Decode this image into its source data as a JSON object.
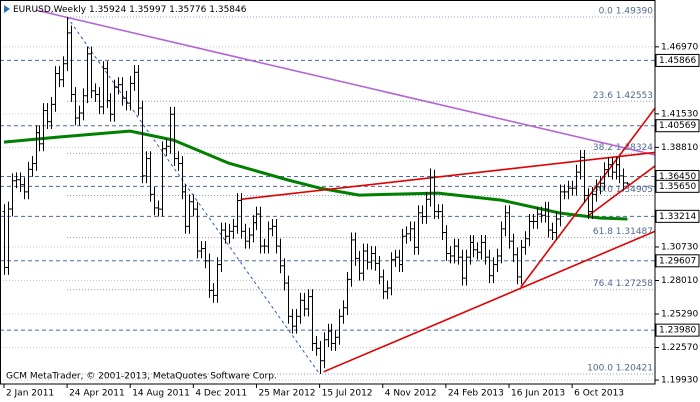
{
  "chart_data": {
    "type": "ohlc",
    "symbol": "EURUSD,Weekly",
    "footer": "GCM MetaTrader, © 2001-2013, MetaQuotes Software Corp.",
    "bar_color": "#000000",
    "open": [
      1.336,
      1.2907,
      1.3381,
      1.361,
      1.3618,
      1.3578,
      1.352,
      1.3703,
      1.375,
      1.4,
      1.391,
      1.418,
      1.409,
      1.423,
      1.448,
      1.443,
      1.456,
      1.481,
      1.431,
      1.412,
      1.416,
      1.43,
      1.464,
      1.434,
      1.431,
      1.421,
      1.452,
      1.426,
      1.415,
      1.437,
      1.439,
      1.428,
      1.424,
      1.44,
      1.449,
      1.42,
      1.365,
      1.379,
      1.35,
      1.339,
      1.338,
      1.387,
      1.389,
      1.415,
      1.379,
      1.375,
      1.352,
      1.324,
      1.344,
      1.338,
      1.304,
      1.306,
      1.296,
      1.272,
      1.268,
      1.293,
      1.321,
      1.316,
      1.32,
      1.324,
      1.345,
      1.32,
      1.312,
      1.317,
      1.327,
      1.334,
      1.308,
      1.308,
      1.322,
      1.324,
      1.308,
      1.292,
      1.278,
      1.251,
      1.243,
      1.251,
      1.264,
      1.257,
      1.267,
      1.229,
      1.225,
      1.215,
      1.232,
      1.239,
      1.229,
      1.234,
      1.251,
      1.258,
      1.281,
      1.313,
      1.298,
      1.286,
      1.304,
      1.295,
      1.302,
      1.294,
      1.283,
      1.271,
      1.274,
      1.297,
      1.299,
      1.293,
      1.316,
      1.318,
      1.322,
      1.307,
      1.335,
      1.332,
      1.346,
      1.364,
      1.336,
      1.336,
      1.319,
      1.302,
      1.3,
      1.308,
      1.299,
      1.282,
      1.299,
      1.311,
      1.305,
      1.303,
      1.311,
      1.299,
      1.284,
      1.293,
      1.3,
      1.322,
      1.335,
      1.312,
      1.301,
      1.283,
      1.307,
      1.314,
      1.328,
      1.328,
      1.334,
      1.333,
      1.338,
      1.321,
      1.319,
      1.33,
      1.352,
      1.352,
      1.355,
      1.355,
      1.368,
      1.38,
      1.349,
      1.336,
      1.35,
      1.356,
      1.359,
      1.37,
      1.374,
      1.368,
      1.374,
      1.365,
      1.35924
    ],
    "high": [
      1.342,
      1.3441,
      1.367,
      1.3678,
      1.3678,
      1.3638,
      1.3763,
      1.381,
      1.406,
      1.406,
      1.424,
      1.424,
      1.429,
      1.454,
      1.454,
      1.462,
      1.4939,
      1.487,
      1.437,
      1.422,
      1.436,
      1.47,
      1.47,
      1.44,
      1.437,
      1.458,
      1.458,
      1.432,
      1.443,
      1.445,
      1.445,
      1.434,
      1.446,
      1.455,
      1.455,
      1.426,
      1.385,
      1.385,
      1.356,
      1.345,
      1.393,
      1.395,
      1.421,
      1.421,
      1.385,
      1.381,
      1.358,
      1.35,
      1.35,
      1.344,
      1.312,
      1.312,
      1.302,
      1.278,
      1.299,
      1.327,
      1.327,
      1.326,
      1.33,
      1.351,
      1.351,
      1.326,
      1.323,
      1.333,
      1.34,
      1.34,
      1.314,
      1.328,
      1.33,
      1.33,
      1.314,
      1.298,
      1.284,
      1.257,
      1.257,
      1.27,
      1.27,
      1.273,
      1.273,
      1.235,
      1.231,
      1.238,
      1.245,
      1.245,
      1.24,
      1.257,
      1.264,
      1.287,
      1.319,
      1.319,
      1.304,
      1.31,
      1.31,
      1.308,
      1.308,
      1.3,
      1.289,
      1.28,
      1.303,
      1.305,
      1.305,
      1.322,
      1.324,
      1.328,
      1.328,
      1.341,
      1.341,
      1.352,
      1.371,
      1.37,
      1.342,
      1.342,
      1.325,
      1.308,
      1.314,
      1.314,
      1.305,
      1.305,
      1.317,
      1.317,
      1.311,
      1.317,
      1.317,
      1.305,
      1.299,
      1.306,
      1.328,
      1.341,
      1.341,
      1.318,
      1.307,
      1.313,
      1.32,
      1.334,
      1.334,
      1.34,
      1.34,
      1.344,
      1.344,
      1.327,
      1.336,
      1.358,
      1.358,
      1.361,
      1.361,
      1.374,
      1.386,
      1.386,
      1.355,
      1.356,
      1.362,
      1.365,
      1.376,
      1.38,
      1.38,
      1.38,
      1.38,
      1.371,
      1.35997
    ],
    "low": [
      1.2847,
      1.2847,
      1.3321,
      1.355,
      1.3518,
      1.346,
      1.346,
      1.3643,
      1.369,
      1.385,
      1.385,
      1.403,
      1.403,
      1.417,
      1.437,
      1.437,
      1.45,
      1.425,
      1.406,
      1.406,
      1.41,
      1.424,
      1.428,
      1.425,
      1.415,
      1.415,
      1.42,
      1.409,
      1.409,
      1.431,
      1.422,
      1.418,
      1.418,
      1.434,
      1.414,
      1.359,
      1.359,
      1.344,
      1.333,
      1.332,
      1.332,
      1.381,
      1.383,
      1.373,
      1.369,
      1.346,
      1.318,
      1.318,
      1.332,
      1.298,
      1.298,
      1.29,
      1.266,
      1.262,
      1.262,
      1.287,
      1.31,
      1.31,
      1.314,
      1.318,
      1.314,
      1.306,
      1.306,
      1.311,
      1.321,
      1.302,
      1.302,
      1.302,
      1.316,
      1.302,
      1.286,
      1.272,
      1.245,
      1.237,
      1.237,
      1.245,
      1.251,
      1.251,
      1.223,
      1.219,
      1.2042,
      1.209,
      1.226,
      1.223,
      1.223,
      1.228,
      1.245,
      1.252,
      1.275,
      1.292,
      1.28,
      1.28,
      1.289,
      1.289,
      1.288,
      1.277,
      1.265,
      1.265,
      1.268,
      1.291,
      1.287,
      1.287,
      1.31,
      1.312,
      1.301,
      1.301,
      1.326,
      1.326,
      1.34,
      1.33,
      1.33,
      1.313,
      1.296,
      1.294,
      1.294,
      1.293,
      1.276,
      1.276,
      1.293,
      1.299,
      1.297,
      1.297,
      1.293,
      1.278,
      1.278,
      1.287,
      1.294,
      1.316,
      1.306,
      1.295,
      1.277,
      1.277,
      1.301,
      1.308,
      1.322,
      1.322,
      1.327,
      1.327,
      1.315,
      1.313,
      1.313,
      1.324,
      1.346,
      1.346,
      1.349,
      1.349,
      1.362,
      1.343,
      1.33,
      1.33,
      1.344,
      1.35,
      1.353,
      1.364,
      1.362,
      1.362,
      1.359,
      1.353,
      1.35776
    ],
    "close": [
      1.2907,
      1.3381,
      1.361,
      1.3618,
      1.3578,
      1.352,
      1.3703,
      1.375,
      1.4,
      1.391,
      1.418,
      1.409,
      1.423,
      1.448,
      1.443,
      1.456,
      1.481,
      1.431,
      1.412,
      1.416,
      1.43,
      1.464,
      1.434,
      1.431,
      1.421,
      1.452,
      1.426,
      1.415,
      1.437,
      1.439,
      1.428,
      1.424,
      1.44,
      1.449,
      1.42,
      1.365,
      1.379,
      1.35,
      1.339,
      1.338,
      1.387,
      1.389,
      1.415,
      1.379,
      1.375,
      1.352,
      1.324,
      1.344,
      1.338,
      1.304,
      1.306,
      1.296,
      1.272,
      1.268,
      1.293,
      1.321,
      1.316,
      1.32,
      1.324,
      1.345,
      1.32,
      1.312,
      1.317,
      1.327,
      1.334,
      1.308,
      1.308,
      1.322,
      1.324,
      1.308,
      1.292,
      1.278,
      1.251,
      1.243,
      1.251,
      1.264,
      1.257,
      1.267,
      1.229,
      1.225,
      1.215,
      1.232,
      1.239,
      1.229,
      1.234,
      1.251,
      1.258,
      1.281,
      1.313,
      1.298,
      1.286,
      1.304,
      1.295,
      1.302,
      1.294,
      1.283,
      1.271,
      1.274,
      1.297,
      1.299,
      1.293,
      1.316,
      1.318,
      1.322,
      1.307,
      1.335,
      1.332,
      1.346,
      1.364,
      1.336,
      1.336,
      1.319,
      1.302,
      1.3,
      1.308,
      1.299,
      1.282,
      1.299,
      1.311,
      1.305,
      1.303,
      1.311,
      1.299,
      1.284,
      1.293,
      1.3,
      1.322,
      1.335,
      1.312,
      1.301,
      1.283,
      1.307,
      1.314,
      1.328,
      1.328,
      1.334,
      1.333,
      1.338,
      1.321,
      1.319,
      1.33,
      1.352,
      1.352,
      1.355,
      1.355,
      1.368,
      1.38,
      1.349,
      1.336,
      1.35,
      1.356,
      1.359,
      1.37,
      1.374,
      1.368,
      1.374,
      1.365,
      1.35924,
      1.35846
    ],
    "xlim": [
      -1,
      165
    ],
    "ylim": [
      1.1961,
      1.5077
    ],
    "xticks": [
      {
        "value": 0,
        "label": "2 Jan 2011"
      },
      {
        "value": 16,
        "label": "24 Apr 2011"
      },
      {
        "value": 32,
        "label": "14 Aug 2011"
      },
      {
        "value": 48,
        "label": "4 Dec 2011"
      },
      {
        "value": 64,
        "label": "25 Mar 2012"
      },
      {
        "value": 80,
        "label": "15 Jul 2012"
      },
      {
        "value": 96,
        "label": "4 Nov 2012"
      },
      {
        "value": 112,
        "label": "24 Feb 2013"
      },
      {
        "value": 128,
        "label": "16 Jun 2013"
      },
      {
        "value": 144,
        "label": "6 Oct 2013"
      }
    ],
    "yticks": [
      {
        "value": 1.4697,
        "label": "1.46970"
      },
      {
        "value": 1.4153,
        "label": "1.41530"
      },
      {
        "value": 1.3881,
        "label": "1.38810"
      },
      {
        "value": 1.3073,
        "label": "1.30730"
      },
      {
        "value": 1.2801,
        "label": "1.28010"
      },
      {
        "value": 1.2529,
        "label": "1.25290"
      },
      {
        "value": 1.2257,
        "label": "1.22570"
      },
      {
        "value": 1.1993,
        "label": "1.19930"
      }
    ],
    "grid": true,
    "levels": [
      1.45866,
      1.40569,
      {
        "value": 1.3645,
        "label": "1.36450"
      },
      {
        "value": 1.3565,
        "label": "1.35650"
      },
      1.33214,
      1.29607,
      {
        "value": 1.2398,
        "label": "1.23980"
      }
    ],
    "level_color": "#4a6a9a",
    "fibo": {
      "color": "#3060c0",
      "x": [
        16,
        80
      ],
      "y": [
        1.4939,
        1.20421
      ]
    },
    "fib_levels": [
      {
        "value": 1.4939,
        "label": "0.0 1.49390"
      },
      {
        "value": 1.42553,
        "label": "23.6 1.42553"
      },
      {
        "value": 1.38324,
        "label": "38.2 1.38324"
      },
      {
        "value": 1.34905,
        "label": "50.0 1.34905"
      },
      {
        "value": 1.31487,
        "label": "61.8 1.31487"
      },
      {
        "value": 1.27258,
        "label": "76.4 1.27258"
      },
      {
        "value": 1.20421,
        "label": "100.0 1.20421"
      }
    ],
    "ma": {
      "color": "#008000",
      "x": [
        0,
        14,
        32,
        43,
        57,
        72,
        80,
        90,
        110,
        126,
        141,
        151,
        158
      ],
      "y": [
        1.3924,
        1.3965,
        1.4013,
        1.394,
        1.3753,
        1.3616,
        1.3551,
        1.3494,
        1.351,
        1.3453,
        1.3348,
        1.3308,
        1.33
      ]
    },
    "trendlines": [
      {
        "color": "#b466d6",
        "x": [
          8,
          165
        ],
        "y": [
          1.4996,
          1.3819
        ]
      },
      {
        "color": "#e00000",
        "x": [
          60,
          165
        ],
        "y": [
          1.346,
          1.384
        ]
      },
      {
        "color": "#e00000",
        "x": [
          81,
          165
        ],
        "y": [
          1.206,
          1.32
        ]
      },
      {
        "color": "#e00000",
        "x": [
          131,
          165
        ],
        "y": [
          1.2747,
          1.42
        ]
      },
      {
        "color": "#e00000",
        "x": [
          148,
          165
        ],
        "y": [
          1.3324,
          1.373
        ]
      }
    ]
  }
}
